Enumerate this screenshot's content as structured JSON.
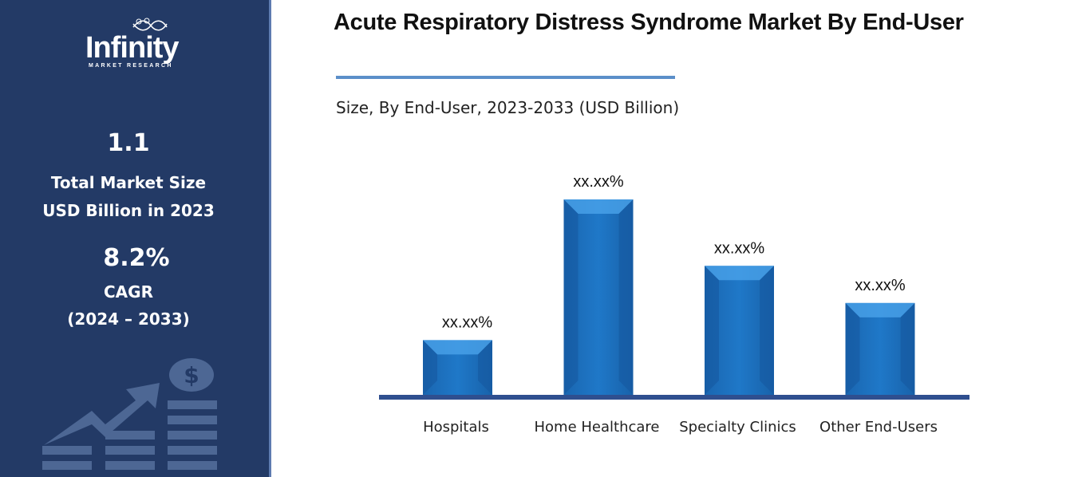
{
  "sidebar": {
    "logo_text": "Infinity",
    "logo_subtext": "MARKET RESEARCH",
    "market_size_value": "1.1",
    "market_size_label_1": "Total Market Size",
    "market_size_label_2": "USD Billion in 2023",
    "cagr_value": "8.2%",
    "cagr_label": "CAGR",
    "cagr_period": "(2024 – 2033)"
  },
  "colors": {
    "sidebar": "#233a66",
    "bar": "#1f78c8",
    "axis": "#2f4f8f",
    "rule": "#5b8fc9"
  },
  "chart_data": {
    "type": "bar",
    "title": "Acute Respiratory Distress Syndrome Market By End-User",
    "subtitle": "Size, By End-User, 2023-2033 (USD Billion)",
    "categories": [
      "Hospitals",
      "Home Healthcare",
      "Specialty Clinics",
      "Other End-Users"
    ],
    "values": [
      0.28,
      1.0,
      0.66,
      0.47
    ],
    "value_units": "relative (unlabeled)",
    "data_labels": [
      "xx.xx%",
      "xx.xx%",
      "xx.xx%",
      "xx.xx%"
    ],
    "xlabel": "",
    "ylabel": "",
    "ylim": [
      0,
      1
    ],
    "grid": false,
    "legend": "none"
  }
}
